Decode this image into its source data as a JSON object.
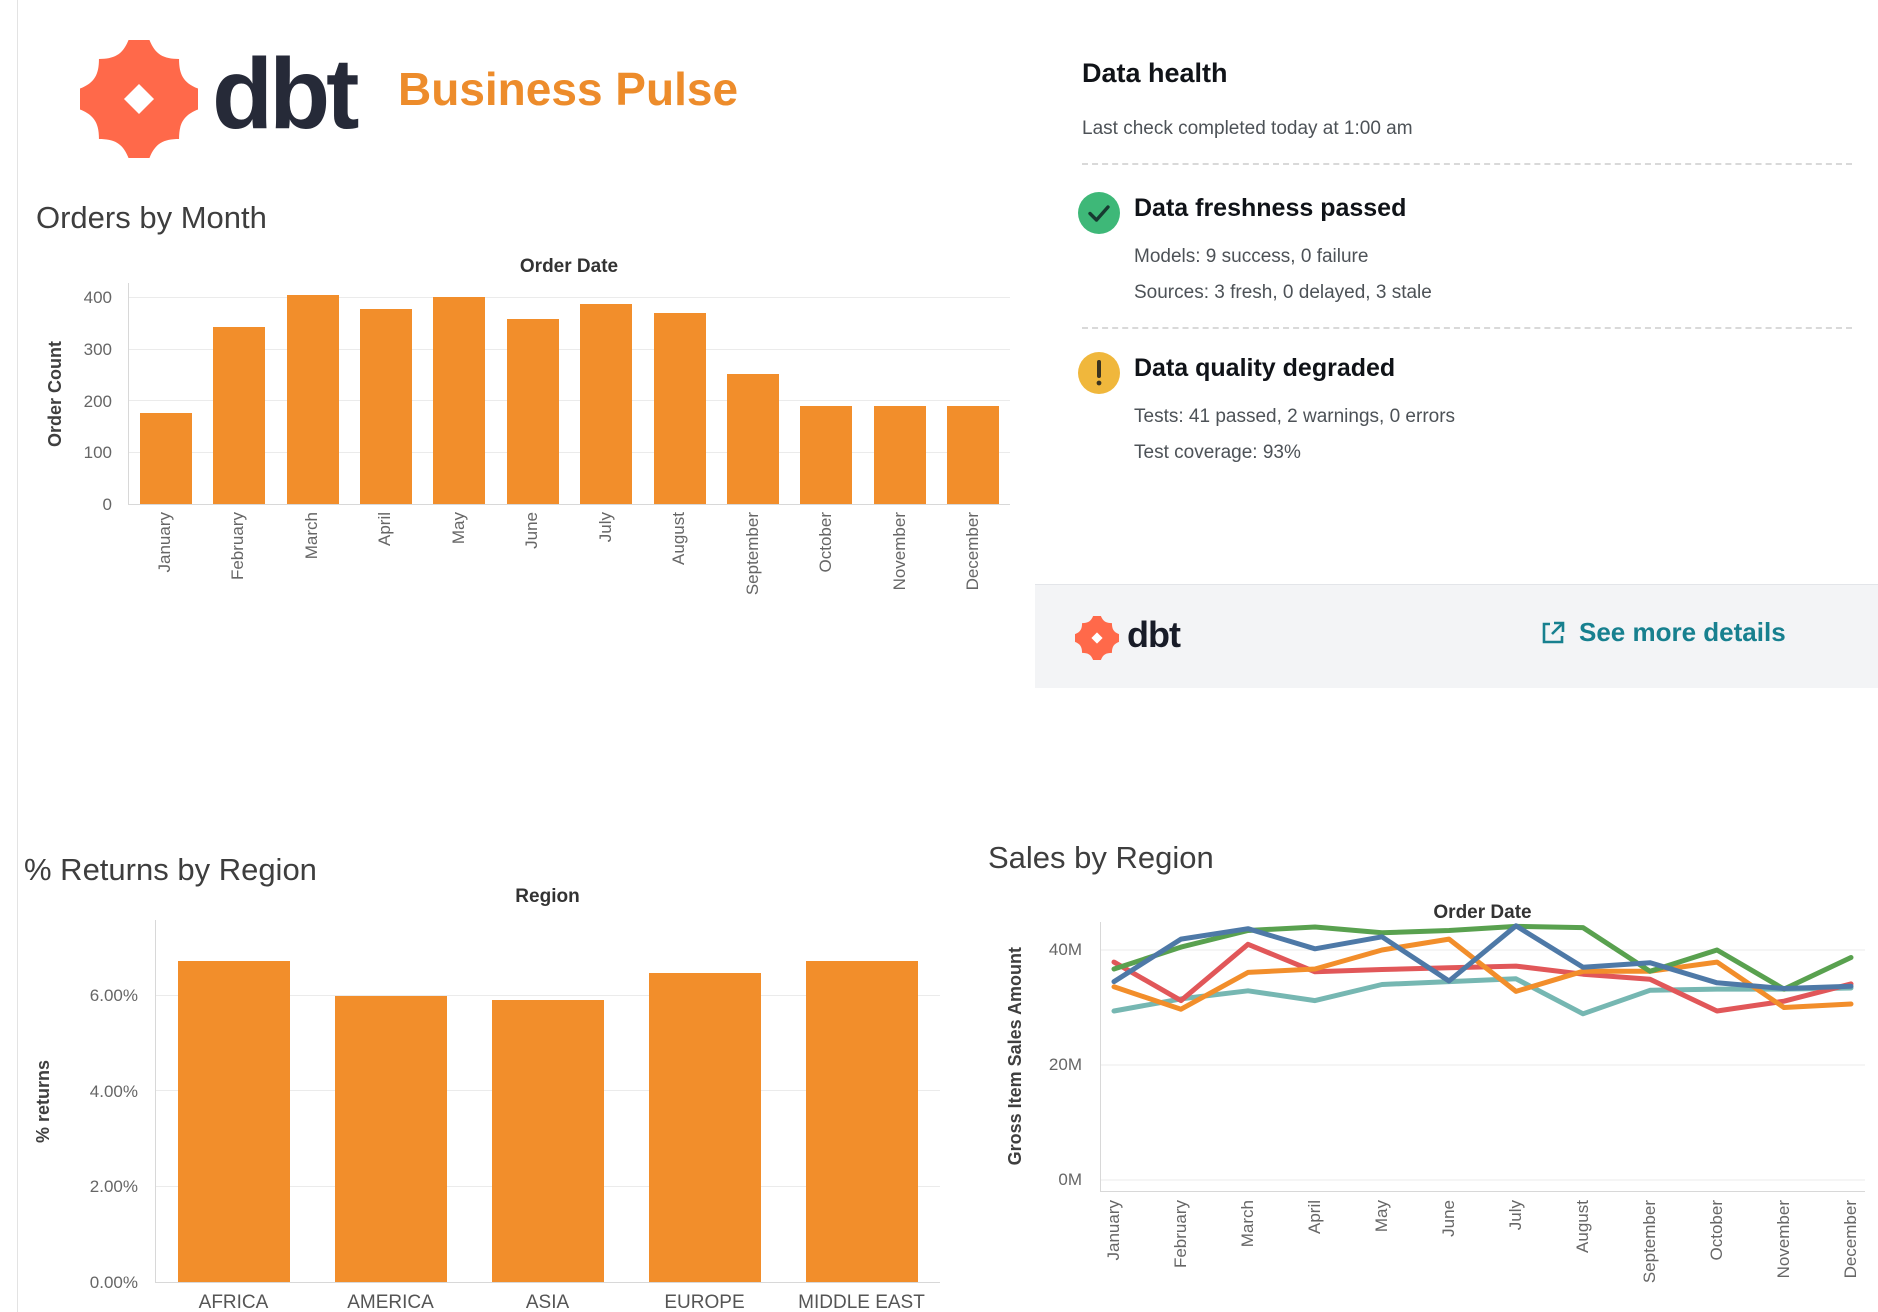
{
  "header": {
    "brand": "dbt",
    "title": "Business Pulse"
  },
  "colors": {
    "accent_orange": "#ED8C2B",
    "bar_orange": "#F28E2B",
    "dbt_coral": "#FF694A",
    "dbt_navy": "#262A38",
    "link_teal": "#17808F",
    "check_green": "#3EB878",
    "warn_amber": "#F0B73C"
  },
  "data_health": {
    "title": "Data health",
    "last_check": "Last check completed today at 1:00 am",
    "checks": [
      {
        "icon": "check-circle",
        "title": "Data freshness passed",
        "lines": [
          "Models: 9 success, 0 failure",
          "Sources: 3 fresh, 0 delayed, 3 stale"
        ]
      },
      {
        "icon": "warning-circle",
        "title": "Data quality degraded",
        "lines": [
          "Tests: 41 passed, 2 warnings, 0 errors",
          "Test coverage: 93%"
        ]
      }
    ],
    "footer": {
      "brand": "dbt",
      "link_label": "See more details"
    }
  },
  "chart_data": [
    {
      "id": "orders",
      "type": "bar",
      "title": "Orders by Month",
      "pane_title": "Order Date",
      "xlabel": "",
      "ylabel": "Order Count",
      "ylim": [
        0,
        430
      ],
      "grid": true,
      "legend_position": "none",
      "yticks": [
        {
          "label": "0",
          "value": 0
        },
        {
          "label": "100",
          "value": 100
        },
        {
          "label": "200",
          "value": 200
        },
        {
          "label": "300",
          "value": 300
        },
        {
          "label": "400",
          "value": 400
        }
      ],
      "categories": [
        "January",
        "February",
        "March",
        "April",
        "May",
        "June",
        "July",
        "August",
        "September",
        "October",
        "November",
        "December"
      ],
      "values": [
        178,
        345,
        406,
        380,
        403,
        360,
        390,
        371,
        253,
        190,
        190,
        190
      ],
      "bar_color": "#F28E2B"
    },
    {
      "id": "returns",
      "type": "bar",
      "title": "% Returns by Region",
      "pane_title": "Region",
      "xlabel": "",
      "ylabel": "% returns",
      "ylim": [
        0,
        7.6
      ],
      "grid": true,
      "legend_position": "none",
      "yticks": [
        {
          "label": "0.00%",
          "value": 0
        },
        {
          "label": "2.00%",
          "value": 2
        },
        {
          "label": "4.00%",
          "value": 4
        },
        {
          "label": "6.00%",
          "value": 6
        }
      ],
      "categories": [
        "AFRICA",
        "AMERICA",
        "ASIA",
        "EUROPE",
        "MIDDLE EAST"
      ],
      "values": [
        6.73,
        6.0,
        5.93,
        6.49,
        6.73
      ],
      "bar_color": "#F28E2B"
    },
    {
      "id": "sales",
      "type": "line",
      "title": "Sales by Region",
      "pane_title": "Order Date",
      "xlabel": "",
      "ylabel": "Gross Item Sales Amount",
      "ylim": [
        0,
        45
      ],
      "grid": true,
      "legend_position": "none",
      "unit": "M = millions",
      "yticks": [
        {
          "label": "0M",
          "value": 0
        },
        {
          "label": "20M",
          "value": 20
        },
        {
          "label": "40M",
          "value": 40
        }
      ],
      "categories": [
        "January",
        "February",
        "March",
        "April",
        "May",
        "June",
        "July",
        "August",
        "September",
        "October",
        "November",
        "December"
      ],
      "series": [
        {
          "name": "teal",
          "color": "#76B7B2",
          "values": [
            29.4,
            31.5,
            32.9,
            31.2,
            34.0,
            34.5,
            35.0,
            28.9,
            33.0,
            33.2,
            33.2,
            33.4
          ]
        },
        {
          "name": "red",
          "color": "#E15759",
          "values": [
            37.9,
            31.2,
            41.0,
            36.2,
            36.6,
            36.9,
            37.2,
            35.8,
            34.9,
            29.4,
            31.1,
            34.1
          ]
        },
        {
          "name": "orange",
          "color": "#F28E2B",
          "values": [
            33.6,
            29.7,
            36.1,
            36.7,
            40.0,
            41.9,
            32.8,
            36.3,
            36.3,
            37.9,
            30.0,
            30.6
          ]
        },
        {
          "name": "green",
          "color": "#59A14F",
          "values": [
            36.7,
            40.5,
            43.4,
            44.0,
            43.0,
            43.4,
            44.1,
            43.9,
            36.3,
            40.0,
            33.2,
            38.7
          ]
        },
        {
          "name": "blue",
          "color": "#4E79A7",
          "values": [
            34.5,
            41.9,
            43.7,
            40.2,
            42.3,
            34.6,
            44.2,
            37.0,
            37.8,
            34.3,
            33.3,
            33.7
          ]
        }
      ]
    }
  ]
}
